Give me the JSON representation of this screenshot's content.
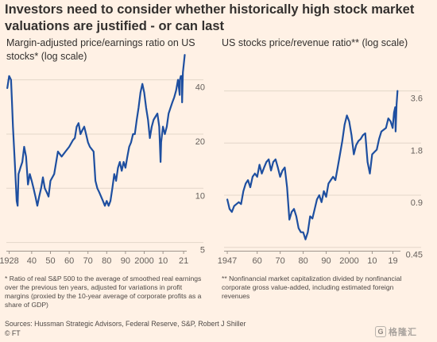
{
  "title": "Investors need to consider whether historically high stock market valuations are justified - or can last",
  "colors": {
    "background": "#fff1e5",
    "line": "#1e4fa0",
    "grid": "#e3d6c9",
    "text": "#33302e"
  },
  "chart_data": [
    {
      "type": "line",
      "subtitle": "Margin-adjusted price/earnings ratio on US stocks* (log scale)",
      "yscale": "log",
      "ylim": [
        4.5,
        58
      ],
      "xlim": [
        1926.5,
        2021.8
      ],
      "yticks": [
        5,
        10,
        20,
        40
      ],
      "ytick_labels": [
        "5",
        "10",
        "20",
        "40"
      ],
      "xtick_labels": [
        {
          "x": 1928,
          "label": "1928"
        },
        {
          "x": 1940,
          "label": "40"
        },
        {
          "x": 1950,
          "label": "50"
        },
        {
          "x": 1960,
          "label": "60"
        },
        {
          "x": 1970,
          "label": "70"
        },
        {
          "x": 1980,
          "label": "80"
        },
        {
          "x": 1990,
          "label": "90"
        },
        {
          "x": 2000,
          "label": "2000"
        },
        {
          "x": 2010,
          "label": "10"
        },
        {
          "x": 2021,
          "label": "21"
        }
      ],
      "grid": true,
      "series": [
        {
          "x": [
            1927,
            1928,
            1929,
            1929.5,
            1930,
            1931,
            1932,
            1932.5,
            1933,
            1934,
            1935,
            1936,
            1937,
            1938,
            1939,
            1940,
            1941,
            1942,
            1943,
            1944,
            1945,
            1946,
            1947,
            1948,
            1949,
            1950,
            1952,
            1954,
            1956,
            1958,
            1960,
            1962,
            1963,
            1964,
            1965,
            1966,
            1967,
            1968,
            1969,
            1970,
            1971,
            1972,
            1973,
            1974,
            1975,
            1976,
            1977,
            1978,
            1979,
            1980,
            1981,
            1982,
            1983,
            1984,
            1985,
            1986,
            1987,
            1988,
            1989,
            1990,
            1991,
            1992,
            1993,
            1994,
            1995,
            1996,
            1997,
            1998,
            1999,
            2000,
            2001,
            2002,
            2003,
            2004,
            2005,
            2006,
            2007,
            2008,
            2008.7,
            2009,
            2010,
            2011,
            2012,
            2013,
            2014,
            2015,
            2016,
            2017,
            2018,
            2018.9,
            2019,
            2019.5,
            2020,
            2020.2,
            2020.6,
            2021,
            2021.6
          ],
          "y": [
            36,
            42,
            40,
            30,
            22,
            14,
            8.5,
            8,
            12,
            13,
            14,
            17,
            15,
            10.5,
            12,
            11,
            10,
            9,
            8,
            9,
            10,
            11.5,
            10,
            9.5,
            9,
            11,
            12,
            16,
            15,
            16,
            17,
            18.5,
            19,
            22,
            23,
            20,
            21,
            22,
            20,
            18,
            17,
            16.5,
            16,
            11,
            10,
            9.5,
            9,
            8.5,
            8,
            8.5,
            8,
            8.5,
            10,
            12,
            11,
            13,
            14,
            12.5,
            14,
            13,
            15,
            17,
            18,
            20,
            20,
            24,
            28,
            34,
            38,
            34,
            28,
            24,
            19,
            22,
            24,
            25,
            26,
            22,
            14,
            18,
            22,
            20,
            22,
            26,
            28,
            30,
            32,
            35,
            40,
            33,
            40,
            42,
            42,
            30,
            44,
            48,
            55
          ]
        }
      ]
    },
    {
      "type": "line",
      "subtitle": "US stocks price/revenue ratio** (log scale)",
      "yscale": "log",
      "ylim": [
        0.43,
        4.2
      ],
      "xlim": [
        1945.6,
        2021.6
      ],
      "yticks": [
        0.45,
        0.9,
        1.8,
        3.6
      ],
      "ytick_labels": [
        "0.45",
        "0.9",
        "1.8",
        "3.6"
      ],
      "xtick_labels": [
        {
          "x": 1947,
          "label": "1947"
        },
        {
          "x": 1960,
          "label": "60"
        },
        {
          "x": 1970,
          "label": "70"
        },
        {
          "x": 1980,
          "label": "80"
        },
        {
          "x": 1990,
          "label": "90"
        },
        {
          "x": 2000,
          "label": "2000"
        },
        {
          "x": 2010,
          "label": "10"
        },
        {
          "x": 2019,
          "label": "19"
        }
      ],
      "grid": true,
      "series": [
        {
          "x": [
            1947,
            1948,
            1949,
            1950,
            1951,
            1952,
            1953,
            1954,
            1955,
            1956,
            1957,
            1958,
            1959,
            1960,
            1961,
            1962,
            1963,
            1964,
            1965,
            1966,
            1967,
            1968,
            1969,
            1970,
            1971,
            1972,
            1973,
            1974,
            1975,
            1976,
            1977,
            1978,
            1979,
            1980,
            1981,
            1982,
            1983,
            1984,
            1985,
            1986,
            1987,
            1988,
            1989,
            1990,
            1991,
            1992,
            1993,
            1994,
            1995,
            1996,
            1997,
            1998,
            1999,
            2000,
            2001,
            2002,
            2003,
            2004,
            2005,
            2006,
            2007,
            2008,
            2009,
            2010,
            2011,
            2012,
            2013,
            2014,
            2015,
            2016,
            2017,
            2018,
            2018.9,
            2019.5,
            2020,
            2020.2,
            2020.6,
            2021
          ],
          "y": [
            0.85,
            0.75,
            0.72,
            0.78,
            0.8,
            0.82,
            0.8,
            0.95,
            1.05,
            1.1,
            1.0,
            1.15,
            1.2,
            1.15,
            1.35,
            1.2,
            1.3,
            1.4,
            1.45,
            1.25,
            1.4,
            1.45,
            1.3,
            1.15,
            1.25,
            1.3,
            1.0,
            0.65,
            0.72,
            0.75,
            0.68,
            0.58,
            0.55,
            0.55,
            0.5,
            0.55,
            0.68,
            0.66,
            0.75,
            0.85,
            0.9,
            0.82,
            0.95,
            0.88,
            1.05,
            1.1,
            1.15,
            1.1,
            1.3,
            1.55,
            1.85,
            2.3,
            2.6,
            2.4,
            2.0,
            1.55,
            1.75,
            1.85,
            1.9,
            2.0,
            2.05,
            1.4,
            1.2,
            1.55,
            1.6,
            1.65,
            1.9,
            2.1,
            2.15,
            2.2,
            2.5,
            2.4,
            2.2,
            2.7,
            2.9,
            2.1,
            3.0,
            3.6
          ]
        }
      ]
    }
  ],
  "footnotes": {
    "left": "* Ratio of real S&P 500 to the average of smoothed real earnings over the previous ten years, adjusted for variations in profit margins (proxied by the 10-year average of corporate profits as a share of GDP)",
    "right": "** Nonfinancial market capitalization divided by nonfinancial corporate gross value-added, including estimated foreign revenues"
  },
  "sources": "Sources: Hussman Strategic Advisors, Federal Reserve, S&P, Robert J Shiller",
  "credit": "© FT",
  "watermark": {
    "icon_letter": "G",
    "text": "格隆汇",
    "icon": "gelonghui-logo-icon"
  }
}
